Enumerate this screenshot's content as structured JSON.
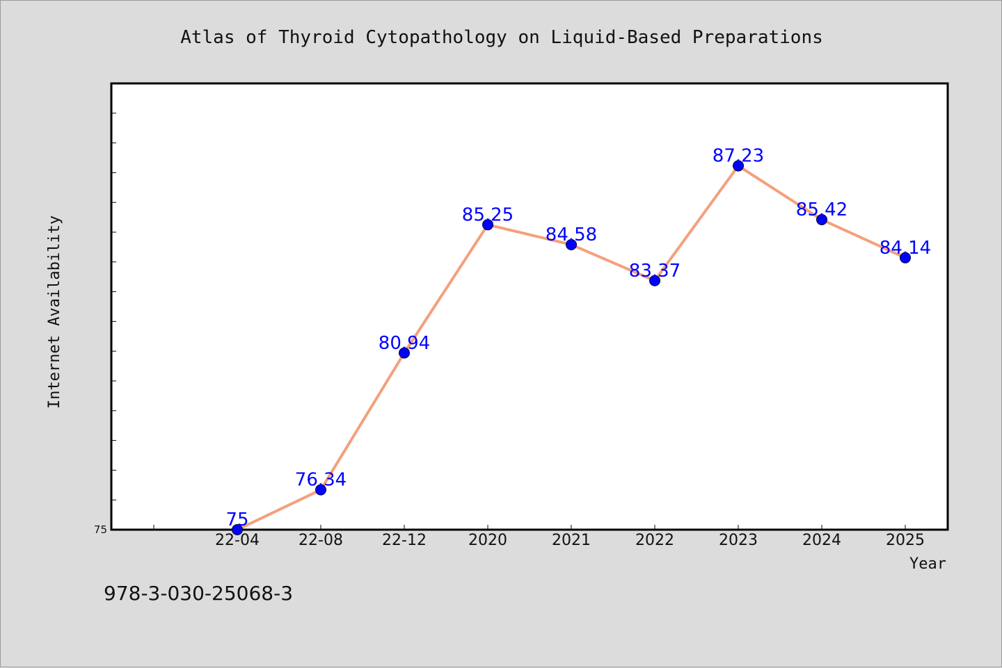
{
  "colors": {
    "background": "#dcdcdc",
    "plot_background": "#ffffff",
    "line": "#f4a07c",
    "marker": "#0000ff",
    "data_label": "#0000ff",
    "axis": "#000000"
  },
  "footer": {
    "isbn": "978-3-030-25068-3"
  },
  "chart_data": {
    "type": "line",
    "title": "Atlas of Thyroid Cytopathology on Liquid-Based Preparations",
    "xlabel": "Year",
    "ylabel": "Internet Availability",
    "categories": [
      "22-04",
      "22-08",
      "22-12",
      "2020",
      "2021",
      "2022",
      "2023",
      "2024",
      "2025"
    ],
    "series": [
      {
        "values": [
          75,
          76.34,
          80.94,
          85.25,
          84.58,
          83.37,
          87.23,
          85.42,
          84.14
        ],
        "labels": [
          "75",
          "76.34",
          "80.94",
          "85.25",
          "84.58",
          "83.37",
          "87.23",
          "85.42",
          "84.14"
        ]
      }
    ],
    "ylim": [
      75,
      90
    ],
    "yticks_labeled": [
      "75"
    ],
    "grid": false,
    "legend": "none"
  }
}
